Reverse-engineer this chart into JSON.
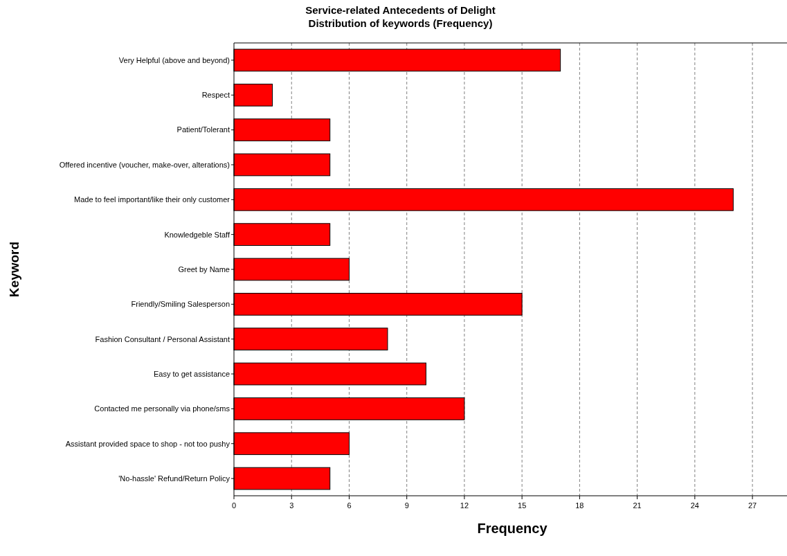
{
  "chart_data": {
    "type": "bar",
    "orientation": "horizontal",
    "title": "Service-related Antecedents of Delight",
    "subtitle": "Distribution of keywords (Frequency)",
    "xlabel": "Frequency",
    "ylabel": "Keyword",
    "categories": [
      "Very Helpful (above and beyond)",
      "Respect",
      "Patient/Tolerant",
      "Offered incentive (voucher, make-over, alterations)",
      "Made to feel important/like their only customer",
      "Knowledgeble Staff",
      "Greet by Name",
      "Friendly/Smiling Salesperson",
      "Fashion Consultant / Personal Assistant",
      "Easy to get assistance",
      "Contacted me personally via phone/sms",
      "Assistant provided space to shop - not too pushy",
      "'No-hassle'  Refund/Return Policy"
    ],
    "values": [
      17,
      2,
      5,
      5,
      26,
      5,
      6,
      15,
      8,
      10,
      12,
      6,
      5
    ],
    "color": "#ff0000",
    "xlim": [
      0,
      28.8
    ],
    "xticks": [
      0,
      3,
      6,
      9,
      12,
      15,
      18,
      21,
      24,
      27
    ],
    "grid": "x"
  }
}
